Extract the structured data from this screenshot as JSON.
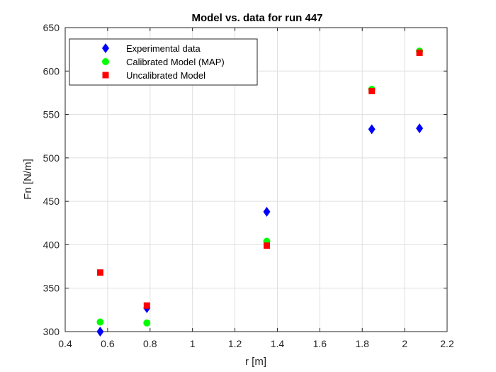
{
  "chart_data": {
    "type": "scatter",
    "title": "Model vs. data for run 447",
    "xlabel": "r [m]",
    "ylabel": "Fn [N/m]",
    "xlim": [
      0.4,
      2.2
    ],
    "ylim": [
      300,
      650
    ],
    "xticks": [
      "0.4",
      "0.6",
      "0.8",
      "1",
      "1.2",
      "1.4",
      "1.6",
      "1.8",
      "2",
      "2.2"
    ],
    "yticks": [
      "300",
      "350",
      "400",
      "450",
      "500",
      "550",
      "600",
      "650"
    ],
    "grid": true,
    "legend_position": "top-left",
    "series": [
      {
        "name": "Experimental data",
        "marker": "diamond",
        "color": "#0000ff",
        "points": [
          [
            0.565,
            300
          ],
          [
            0.785,
            327
          ],
          [
            1.35,
            438
          ],
          [
            1.845,
            533
          ],
          [
            2.07,
            534
          ]
        ]
      },
      {
        "name": "Calibrated Model (MAP)",
        "marker": "circle",
        "color": "#00ff00",
        "points": [
          [
            0.565,
            311
          ],
          [
            0.785,
            310
          ],
          [
            1.35,
            404
          ],
          [
            1.845,
            579
          ],
          [
            2.07,
            623
          ]
        ]
      },
      {
        "name": "Uncalibrated Model",
        "marker": "square",
        "color": "#ff0000",
        "points": [
          [
            0.565,
            368
          ],
          [
            0.785,
            330
          ],
          [
            1.35,
            399
          ],
          [
            1.845,
            577
          ],
          [
            2.07,
            621
          ]
        ]
      }
    ]
  }
}
